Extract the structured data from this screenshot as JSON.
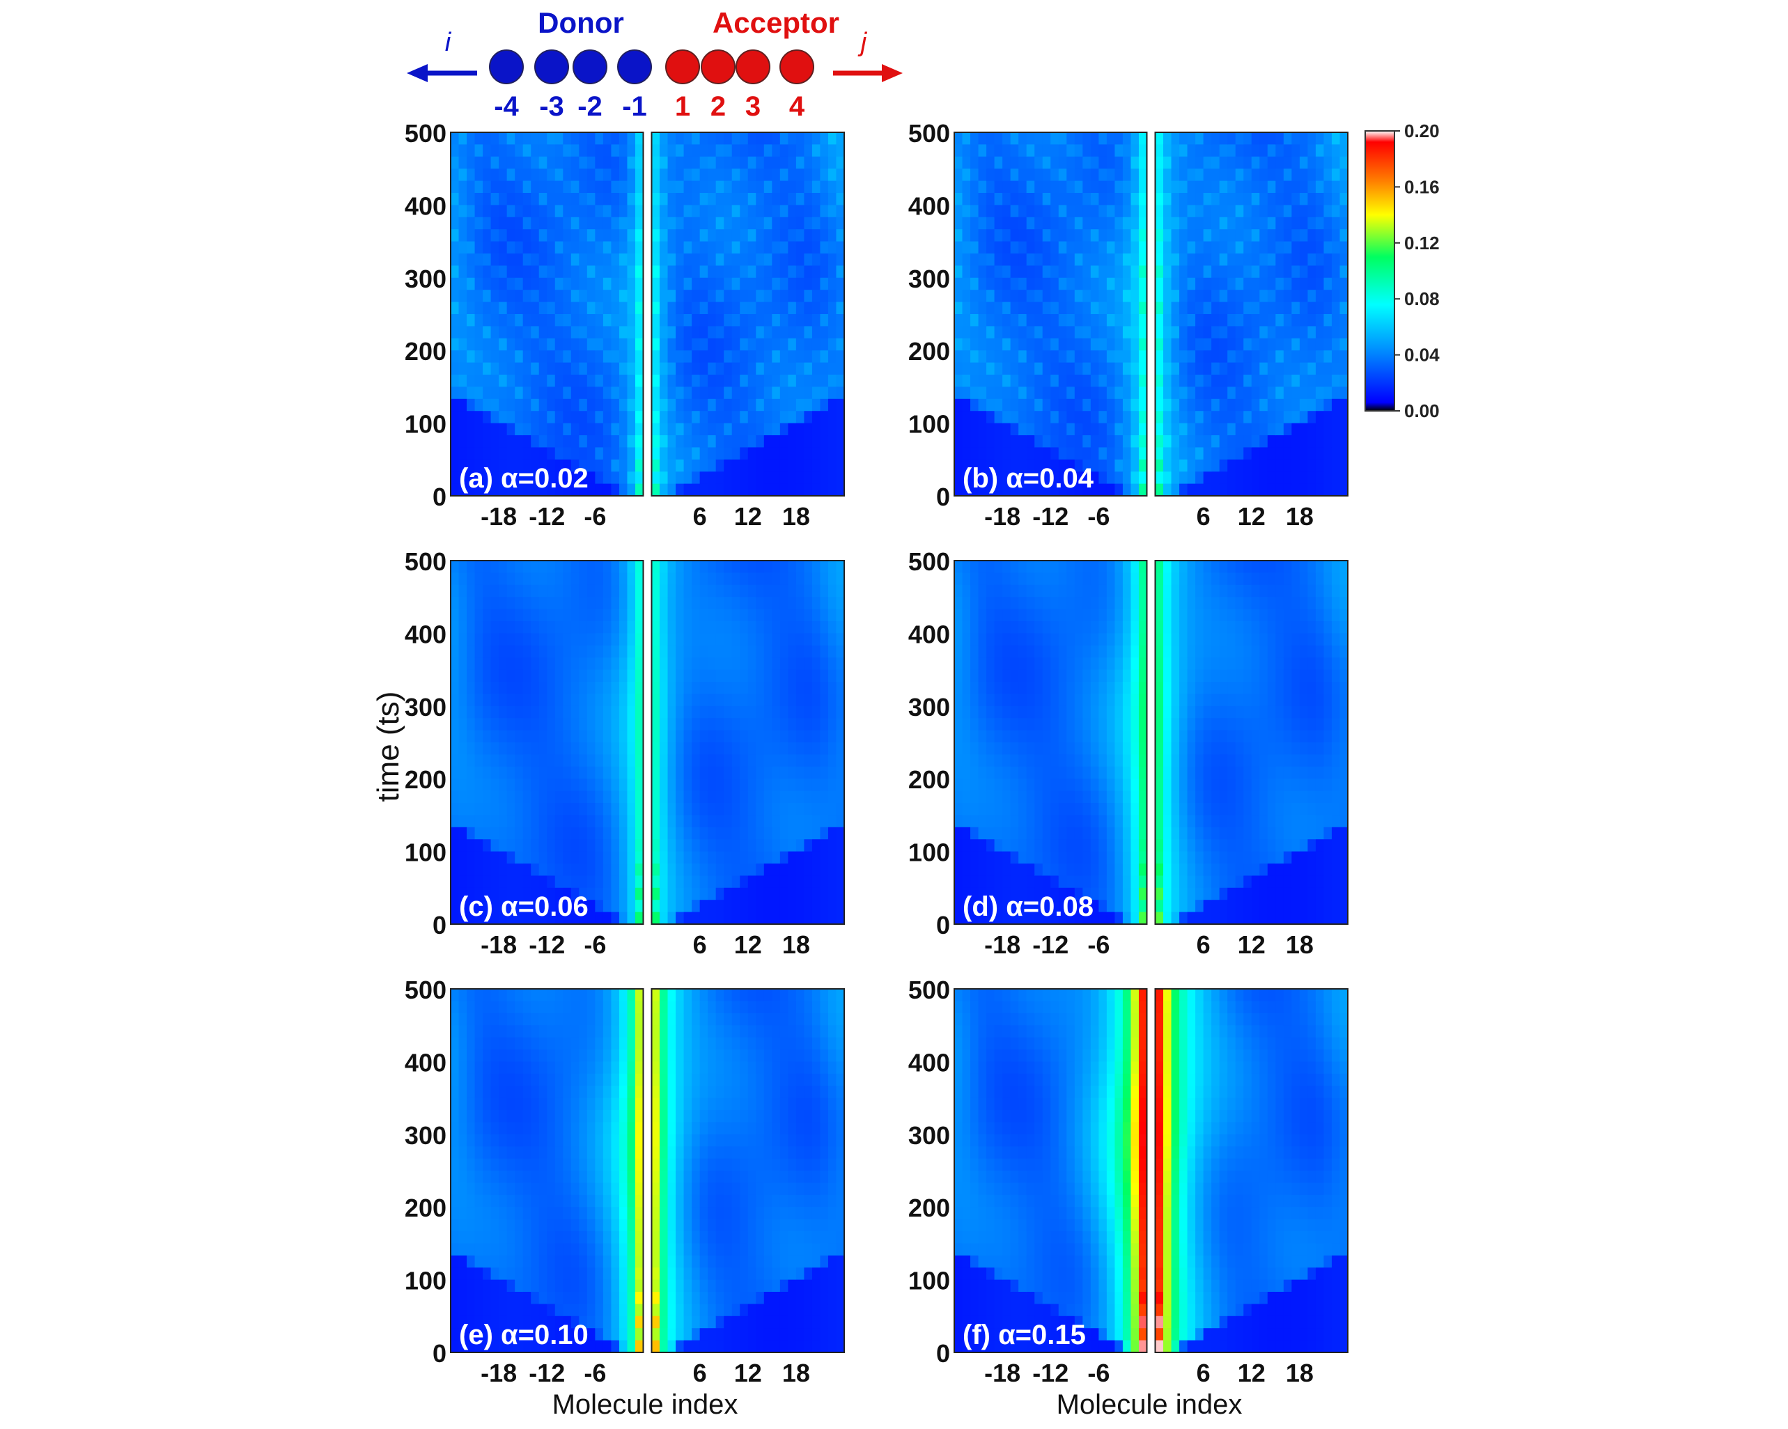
{
  "schematic": {
    "donor_label": "Donor",
    "acceptor_label": "Acceptor",
    "left_arrow_label": "i",
    "right_arrow_label": "j",
    "donor_indices": [
      "-4",
      "-3",
      "-2",
      "-1"
    ],
    "acceptor_indices": [
      "1",
      "2",
      "3",
      "4"
    ],
    "donor_color": "#0a14c8",
    "acceptor_color": "#e01010"
  },
  "colorbar": {
    "ticks": [
      "0.20",
      "0.16",
      "0.12",
      "0.08",
      "0.04",
      "0.00"
    ],
    "range": [
      0.0,
      0.2
    ],
    "colors": [
      "#000000",
      "#0000ff",
      "#00a0ff",
      "#00ffff",
      "#00ff80",
      "#ffff00",
      "#ff8000",
      "#ff0000",
      "#ffffff"
    ]
  },
  "axes": {
    "ylabel": "time (ts)",
    "xlabel": "Molecule index",
    "yticks": [
      "0",
      "100",
      "200",
      "300",
      "400",
      "500"
    ],
    "xticks": [
      "-18",
      "-12",
      "-6",
      "6",
      "12",
      "18"
    ]
  },
  "chart_data": [
    {
      "type": "heatmap",
      "panel_label": "(a) α=0.02",
      "alpha": 0.02,
      "xlabel": "",
      "ylabel": "",
      "ylim": [
        0,
        500
      ],
      "xlim": [
        -24,
        24
      ],
      "interface_intensity": 0.06,
      "fringes": true,
      "front_speed_molecules_per_ts": 0.16
    },
    {
      "type": "heatmap",
      "panel_label": "(b) α=0.04",
      "alpha": 0.04,
      "xlabel": "",
      "ylabel": "",
      "ylim": [
        0,
        500
      ],
      "xlim": [
        -24,
        24
      ],
      "interface_intensity": 0.065,
      "fringes": true,
      "front_speed_molecules_per_ts": 0.16
    },
    {
      "type": "heatmap",
      "panel_label": "(c) α=0.06",
      "alpha": 0.06,
      "xlabel": "",
      "ylabel": "time (ts)",
      "ylim": [
        0,
        500
      ],
      "xlim": [
        -24,
        24
      ],
      "interface_intensity": 0.075,
      "fringes": false,
      "front_speed_molecules_per_ts": 0.16
    },
    {
      "type": "heatmap",
      "panel_label": "(d) α=0.08",
      "alpha": 0.08,
      "xlabel": "",
      "ylabel": "",
      "ylim": [
        0,
        500
      ],
      "xlim": [
        -24,
        24
      ],
      "interface_intensity": 0.09,
      "fringes": false,
      "front_speed_molecules_per_ts": 0.16
    },
    {
      "type": "heatmap",
      "panel_label": "(e) α=0.10",
      "alpha": 0.1,
      "xlabel": "Molecule index",
      "ylabel": "",
      "ylim": [
        0,
        500
      ],
      "xlim": [
        -24,
        24
      ],
      "interface_intensity": 0.14,
      "fringes": false,
      "front_speed_molecules_per_ts": 0.16
    },
    {
      "type": "heatmap",
      "panel_label": "(f) α=0.15",
      "alpha": 0.15,
      "xlabel": "Molecule index",
      "ylabel": "",
      "ylim": [
        0,
        500
      ],
      "xlim": [
        -24,
        24
      ],
      "interface_intensity": 0.2,
      "fringes": false,
      "front_speed_molecules_per_ts": 0.16
    }
  ]
}
